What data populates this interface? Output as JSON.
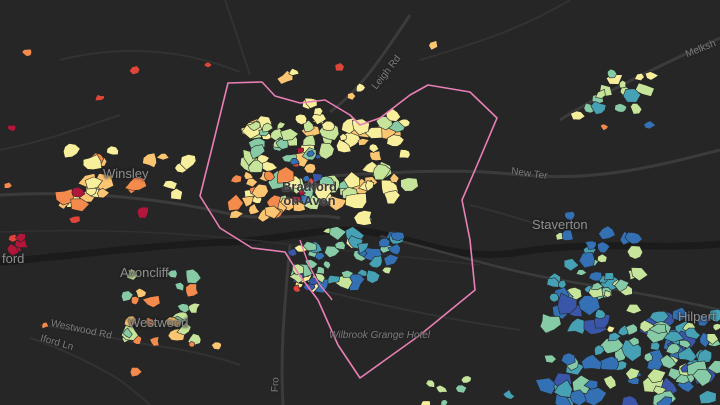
{
  "palette": {
    "background": "#262626",
    "road_major": "#3b3b3b",
    "road_minor": "#323232",
    "river": "#1b1b1b",
    "boundary": "#e87fb5",
    "ramp": [
      "#b2163a",
      "#e0453a",
      "#f48a4c",
      "#fbc572",
      "#f8ef9c",
      "#c6e49a",
      "#86cba6",
      "#46a1b5",
      "#3370b4",
      "#3a56a8"
    ]
  },
  "labels": {
    "winsley": "Winsley",
    "bradford_line1": "Bradford",
    "bradford_line2": "on-Avon",
    "avoncliff": "Avoncliff",
    "westwood": "Westwood",
    "westwood_rd": "Westwood Rd",
    "iford_ln": "Iford Ln",
    "staverton": "Staverton",
    "new_ter": "New Ter",
    "leigh_rd": "Leigh Rd",
    "melksham": "Melksh",
    "hilperton": "Hilpert",
    "wilbrook": "Wilbrook Grange Hotel",
    "fro": "Fro",
    "edge_left": "ford"
  }
}
